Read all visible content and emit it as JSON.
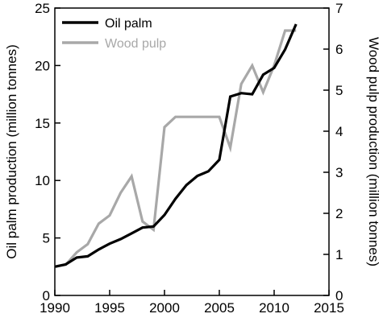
{
  "chart_data": {
    "type": "line",
    "x": [
      1990,
      1991,
      1992,
      1993,
      1994,
      1995,
      1996,
      1997,
      1998,
      1999,
      2000,
      2001,
      2002,
      2003,
      2004,
      2005,
      2006,
      2007,
      2008,
      2009,
      2010,
      2011,
      2012
    ],
    "xlim": [
      1990,
      2015
    ],
    "x_ticks": [
      1990,
      1995,
      2000,
      2005,
      2010,
      2015
    ],
    "y_left": {
      "label": "Oil palm production (million tonnes)",
      "lim": [
        0,
        25
      ],
      "ticks": [
        0,
        5,
        10,
        15,
        20,
        25
      ]
    },
    "y_right": {
      "label": "Wood pulp production (million tonnes)",
      "lim": [
        0,
        7
      ],
      "ticks": [
        0,
        1,
        2,
        3,
        4,
        5,
        6,
        7
      ]
    },
    "series": [
      {
        "name": "Oil palm",
        "axis": "left",
        "color": "#000000",
        "values": [
          2.5,
          2.7,
          3.3,
          3.4,
          4.0,
          4.5,
          4.9,
          5.4,
          5.9,
          6.0,
          7.0,
          8.4,
          9.6,
          10.4,
          10.8,
          11.8,
          17.3,
          17.6,
          17.5,
          19.2,
          19.8,
          21.4,
          23.6
        ]
      },
      {
        "name": "Wood pulp",
        "axis": "right",
        "color": "#a8a8a8",
        "values": [
          0.7,
          0.75,
          1.05,
          1.25,
          1.75,
          1.95,
          2.5,
          2.9,
          1.8,
          1.6,
          4.1,
          4.35,
          4.35,
          4.35,
          4.35,
          4.35,
          3.6,
          5.15,
          5.6,
          4.95,
          5.6,
          6.45,
          6.45
        ]
      }
    ],
    "legend": "top-left",
    "grid": false
  }
}
